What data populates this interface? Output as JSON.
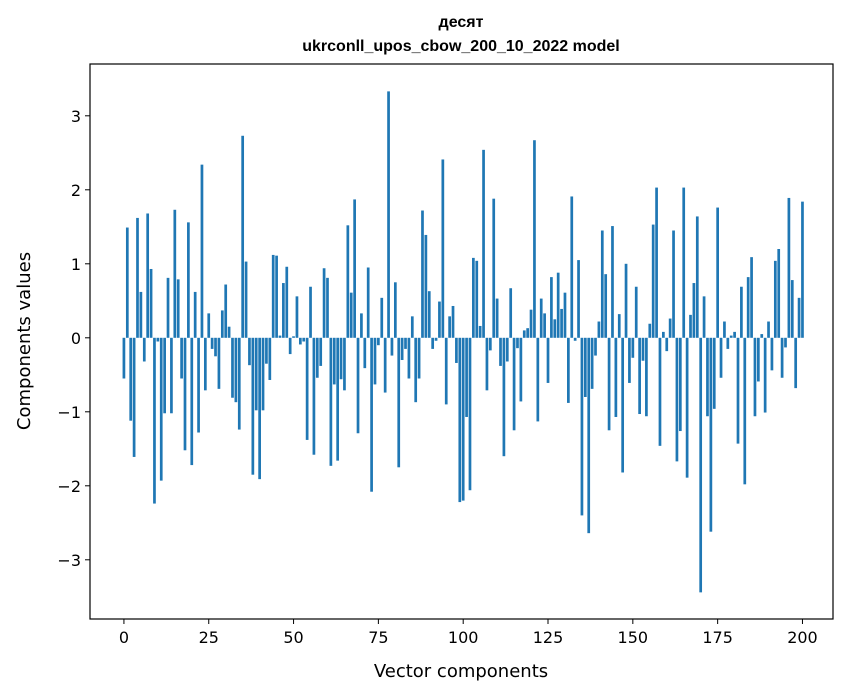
{
  "chart_data": {
    "type": "bar",
    "title_line1": "десят",
    "title_line2": "ukrconll_upos_cbow_200_10_2022 model",
    "xlabel": "Vector components",
    "ylabel": "Components values",
    "xlim": [
      -10,
      209
    ],
    "ylim": [
      -3.8,
      3.7
    ],
    "xticks": [
      0,
      25,
      50,
      75,
      100,
      125,
      150,
      175,
      200
    ],
    "yticks": [
      -3,
      -2,
      -1,
      0,
      1,
      2,
      3
    ],
    "xtick_labels": [
      "0",
      "25",
      "50",
      "75",
      "100",
      "125",
      "150",
      "175",
      "200"
    ],
    "ytick_labels": [
      "−3",
      "−2",
      "−1",
      "0",
      "1",
      "2",
      "3"
    ],
    "bar_color": "#1f77b4",
    "grid": false,
    "values": [
      -0.55,
      1.49,
      -1.12,
      -1.61,
      1.62,
      0.62,
      -0.32,
      1.68,
      0.93,
      -2.24,
      -0.05,
      -1.93,
      -1.02,
      0.81,
      -1.02,
      1.73,
      0.79,
      -0.55,
      -1.52,
      1.56,
      -1.72,
      0.62,
      -1.28,
      2.34,
      -0.71,
      0.33,
      -0.15,
      -0.25,
      -0.69,
      0.37,
      0.72,
      0.15,
      -0.81,
      -0.87,
      -1.24,
      2.73,
      1.03,
      -0.37,
      -1.85,
      -0.98,
      -1.91,
      -0.98,
      -0.35,
      -0.57,
      1.12,
      1.11,
      0.03,
      0.74,
      0.96,
      -0.22,
      0.02,
      0.56,
      -0.09,
      -0.05,
      -1.38,
      0.69,
      -1.58,
      -0.54,
      -0.38,
      0.94,
      0.81,
      -1.73,
      -0.63,
      -1.66,
      -0.56,
      -0.71,
      1.52,
      0.61,
      1.87,
      -1.29,
      0.33,
      -0.41,
      0.95,
      -2.08,
      -0.63,
      -0.1,
      0.54,
      -0.74,
      3.33,
      -0.24,
      0.75,
      -1.75,
      -0.3,
      -0.15,
      -0.55,
      0.29,
      -0.87,
      -0.55,
      1.72,
      1.39,
      0.63,
      -0.15,
      -0.04,
      0.49,
      2.41,
      -0.9,
      0.29,
      0.43,
      -0.34,
      -2.22,
      -2.2,
      -1.07,
      -2.06,
      1.08,
      1.04,
      0.16,
      2.54,
      -0.71,
      -0.17,
      1.88,
      0.53,
      -0.38,
      -1.6,
      -0.32,
      0.67,
      -1.25,
      -0.14,
      -0.86,
      0.1,
      0.13,
      0.38,
      2.67,
      -1.13,
      0.53,
      0.33,
      -0.61,
      0.82,
      0.25,
      0.88,
      0.39,
      0.61,
      -0.88,
      1.91,
      -0.04,
      1.05,
      -2.4,
      -0.8,
      -2.64,
      -0.69,
      -0.24,
      0.22,
      1.45,
      0.86,
      -1.25,
      1.51,
      -1.07,
      0.32,
      -1.82,
      1.0,
      -0.61,
      -0.27,
      0.69,
      -1.03,
      -0.31,
      -1.06,
      0.19,
      1.53,
      2.03,
      -1.46,
      0.08,
      -0.18,
      0.26,
      1.45,
      -1.67,
      -1.26,
      2.03,
      -1.89,
      0.31,
      0.74,
      1.64,
      -3.44,
      0.56,
      -1.06,
      -2.62,
      -0.96,
      1.76,
      -0.54,
      0.22,
      -0.15,
      0.03,
      0.08,
      -1.43,
      0.69,
      -1.98,
      0.82,
      1.09,
      -1.06,
      -0.59,
      0.05,
      -1.01,
      0.22,
      -0.44,
      1.04,
      1.2,
      -0.54,
      -0.13,
      1.89,
      0.78,
      -0.68,
      0.54,
      1.84
    ]
  }
}
